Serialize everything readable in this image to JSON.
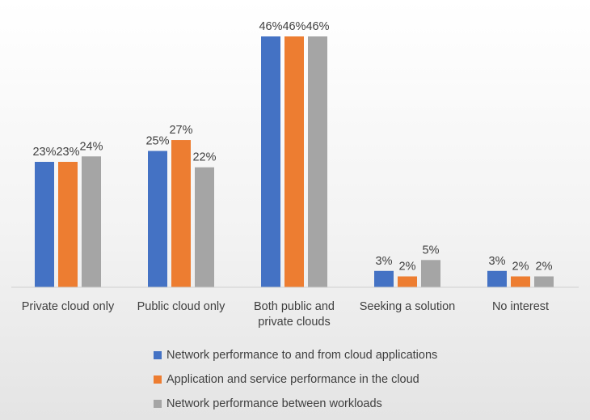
{
  "chart_data": {
    "type": "bar",
    "categories": [
      [
        "Private cloud only"
      ],
      [
        "Public cloud only"
      ],
      [
        "Both public and",
        "private clouds"
      ],
      [
        "Seeking a solution"
      ],
      [
        "No interest"
      ]
    ],
    "series": [
      {
        "name": "Network performance to and from cloud applications",
        "color": "#4472c4",
        "values": [
          23,
          25,
          46,
          3,
          3
        ]
      },
      {
        "name": "Application and service performance in the cloud",
        "color": "#ed7d31",
        "values": [
          23,
          27,
          46,
          2,
          2
        ]
      },
      {
        "name": "Network performance between workloads",
        "color": "#a5a5a5",
        "values": [
          24,
          22,
          46,
          5,
          2
        ]
      }
    ],
    "value_suffix": "%",
    "ylim": [
      0,
      50
    ],
    "grid": false,
    "legend_position": "bottom"
  }
}
